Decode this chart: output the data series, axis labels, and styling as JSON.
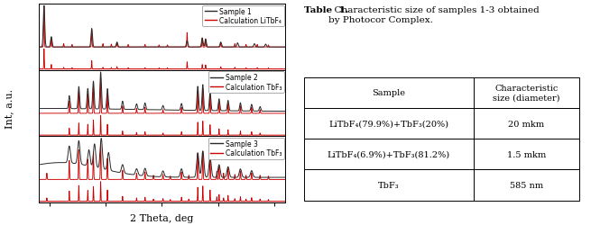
{
  "xrd_xlim": [
    18,
    62
  ],
  "xlabel": "2 Theta, deg",
  "ylabel": "Int, a.u.",
  "panel_labels": [
    "Sample 1",
    "Sample 2",
    "Sample 3"
  ],
  "calc_labels": [
    "Calculation LiTbF₄",
    "Calculation TbF₃",
    "Calculation TbF₃"
  ],
  "sample_color": "#2a2a2a",
  "calc_color": "#cc0000",
  "background_color": "#ffffff",
  "s1_black_peaks": [
    19.0,
    20.3,
    27.5,
    32.0,
    44.5,
    47.2,
    47.8,
    50.5,
    53.5,
    56.5,
    58.5
  ],
  "s1_black_amps": [
    1.0,
    0.25,
    0.45,
    0.12,
    0.15,
    0.22,
    0.18,
    0.12,
    0.1,
    0.08,
    0.07
  ],
  "s1_red_peaks": [
    19.0,
    20.3,
    22.5,
    24.0,
    27.5,
    29.5,
    31.0,
    32.0,
    34.0,
    37.0,
    39.5,
    41.0,
    44.5,
    47.2,
    47.8,
    50.5,
    53.0,
    55.0,
    57.0,
    59.0
  ],
  "s1_red_amps": [
    1.0,
    0.22,
    0.08,
    0.06,
    0.42,
    0.08,
    0.07,
    0.11,
    0.06,
    0.06,
    0.05,
    0.05,
    0.35,
    0.22,
    0.2,
    0.11,
    0.08,
    0.06,
    0.06,
    0.05
  ],
  "s2_black_peaks": [
    23.5,
    25.2,
    26.8,
    27.8,
    29.1,
    30.3,
    33.0,
    35.5,
    37.0,
    40.2,
    43.5,
    46.4,
    47.3,
    48.6,
    50.2,
    51.8,
    54.0,
    56.0,
    57.5
  ],
  "s2_black_amps": [
    0.35,
    0.6,
    0.55,
    0.75,
    1.0,
    0.55,
    0.22,
    0.15,
    0.18,
    0.12,
    0.18,
    0.65,
    0.7,
    0.52,
    0.32,
    0.28,
    0.22,
    0.18,
    0.12
  ],
  "s2_red_peaks": [
    23.5,
    25.2,
    26.8,
    27.8,
    29.1,
    30.3,
    33.0,
    35.5,
    37.0,
    40.2,
    43.5,
    46.4,
    47.3,
    48.6,
    50.2,
    51.8,
    54.0,
    56.0,
    57.5
  ],
  "s2_red_amps": [
    0.33,
    0.58,
    0.52,
    0.72,
    0.96,
    0.52,
    0.2,
    0.13,
    0.16,
    0.1,
    0.16,
    0.62,
    0.67,
    0.5,
    0.3,
    0.26,
    0.2,
    0.16,
    0.1
  ],
  "s3_black_peaks": [
    23.5,
    25.2,
    27.0,
    28.0,
    29.2,
    30.5,
    33.0,
    35.5,
    37.0,
    40.2,
    43.5,
    46.4,
    47.3,
    48.6,
    50.2,
    51.8,
    54.0,
    56.0
  ],
  "s3_black_amps": [
    0.4,
    0.55,
    0.38,
    0.55,
    0.72,
    0.42,
    0.2,
    0.15,
    0.18,
    0.14,
    0.2,
    0.58,
    0.62,
    0.48,
    0.3,
    0.25,
    0.2,
    0.16
  ],
  "s3_red_peaks": [
    19.5,
    23.5,
    25.2,
    26.8,
    27.8,
    29.1,
    30.3,
    33.0,
    35.5,
    37.0,
    38.5,
    40.2,
    41.5,
    43.5,
    44.8,
    46.4,
    47.3,
    48.6,
    49.8,
    50.2,
    51.0,
    51.8,
    53.0,
    54.0,
    55.0,
    56.0,
    57.5,
    59.0
  ],
  "s3_red_amps": [
    0.15,
    0.45,
    0.7,
    0.48,
    0.65,
    0.88,
    0.5,
    0.22,
    0.15,
    0.18,
    0.1,
    0.12,
    0.08,
    0.18,
    0.1,
    0.62,
    0.67,
    0.5,
    0.2,
    0.3,
    0.15,
    0.26,
    0.12,
    0.2,
    0.1,
    0.16,
    0.1,
    0.08
  ],
  "table_title_bold": "Table  1.",
  "table_title_rest": "  Characteristic size of samples 1-3 obtained\nby Photocor Complex.",
  "table_col1_header": "Sample",
  "table_col2_header": "Characteristic\nsize (diameter)",
  "table_rows": [
    [
      "LiTbF₄(79.9%)+TbF₃(20%)",
      "20 mkm"
    ],
    [
      "LiTbF₄(6.9%)+TbF₃(81.2%)",
      "1.5 mkm"
    ],
    [
      "TbF₃",
      "585 nm"
    ]
  ]
}
